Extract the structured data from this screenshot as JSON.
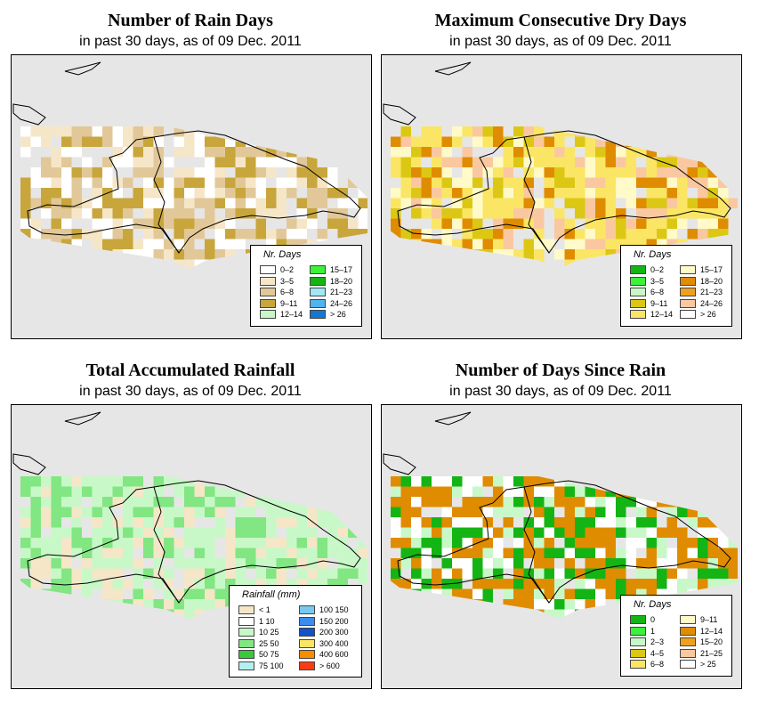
{
  "panels": [
    {
      "id": "rain_days",
      "title": "Number of Rain Days",
      "subtitle": "in past 30 days, as of  09 Dec. 2011",
      "legend_title": "Nr. Days",
      "legend": [
        {
          "label": "0–2",
          "color": "#ffffff"
        },
        {
          "label": "3–5",
          "color": "#f5e6c8"
        },
        {
          "label": "6–8",
          "color": "#e2c898"
        },
        {
          "label": "9–11",
          "color": "#c8a63c"
        },
        {
          "label": "12–14",
          "color": "#c8f8c8"
        },
        {
          "label": "15–17",
          "color": "#3cf03c"
        },
        {
          "label": "18–20",
          "color": "#14b414"
        },
        {
          "label": "21–23",
          "color": "#a0e8f8"
        },
        {
          "label": "24–26",
          "color": "#50b4f0"
        },
        {
          "label": "> 26",
          "color": "#1478d2"
        }
      ],
      "cell_colors": [
        "#ffffff",
        "#f5e6c8",
        "#e2c898",
        "#c8a63c"
      ]
    },
    {
      "id": "max_dry",
      "title": "Maximum Consecutive Dry Days",
      "subtitle": "in past 30 days, as of  09 Dec. 2011",
      "legend_title": "Nr. Days",
      "legend": [
        {
          "label": "0–2",
          "color": "#14b414"
        },
        {
          "label": "3–5",
          "color": "#3cf03c"
        },
        {
          "label": "6–8",
          "color": "#c8f8c8"
        },
        {
          "label": "9–11",
          "color": "#dcc814"
        },
        {
          "label": "12–14",
          "color": "#fae664"
        },
        {
          "label": "15–17",
          "color": "#fffac8"
        },
        {
          "label": "18–20",
          "color": "#e08c00"
        },
        {
          "label": "21–23",
          "color": "#f0a01e"
        },
        {
          "label": "24–26",
          "color": "#fac8a0"
        },
        {
          "label": "> 26",
          "color": "#ffffff"
        }
      ],
      "cell_colors": [
        "#fae664",
        "#fae664",
        "#dcc814",
        "#fac8a0",
        "#e08c00",
        "#fffac8"
      ]
    },
    {
      "id": "total_rain",
      "title": "Total Accumulated Rainfall",
      "subtitle": "in past 30 days, as of  09 Dec. 2011",
      "legend_title": "Rainfall (mm)",
      "legend": [
        {
          "label": "< 1",
          "color": "#f5e6c8"
        },
        {
          "label": "1   10",
          "color": "#ffffff"
        },
        {
          "label": "10   25",
          "color": "#c8f8c8"
        },
        {
          "label": "25   50",
          "color": "#82e682"
        },
        {
          "label": "50   75",
          "color": "#3cc83c"
        },
        {
          "label": "75  100",
          "color": "#b4f0f0"
        },
        {
          "label": "100  150",
          "color": "#78c8f0"
        },
        {
          "label": "150  200",
          "color": "#3c8cf0"
        },
        {
          "label": "200  300",
          "color": "#1450c8"
        },
        {
          "label": "300  400",
          "color": "#fae664"
        },
        {
          "label": "400  600",
          "color": "#fa8c00"
        },
        {
          "label": "> 600",
          "color": "#fa3c14"
        }
      ],
      "cell_colors": [
        "#f5e6c8",
        "#c8f8c8",
        "#82e682",
        "#c8f8c8"
      ]
    },
    {
      "id": "days_since",
      "title": "Number of Days Since Rain",
      "subtitle": "in past 30 days, as of  09 Dec. 2011",
      "legend_title": "Nr. Days",
      "legend": [
        {
          "label": "0",
          "color": "#14b414"
        },
        {
          "label": "1",
          "color": "#3cf03c"
        },
        {
          "label": "2–3",
          "color": "#c8f8c8"
        },
        {
          "label": "4–5",
          "color": "#dcc814"
        },
        {
          "label": "6–8",
          "color": "#fae664"
        },
        {
          "label": "9–11",
          "color": "#fffac8"
        },
        {
          "label": "12–14",
          "color": "#e08c00"
        },
        {
          "label": "15–20",
          "color": "#f0a01e"
        },
        {
          "label": "21–25",
          "color": "#fac8a0"
        },
        {
          "label": "> 25",
          "color": "#ffffff"
        }
      ],
      "cell_colors": [
        "#e08c00",
        "#14b414",
        "#ffffff",
        "#c8f8c8",
        "#e08c00"
      ]
    }
  ]
}
